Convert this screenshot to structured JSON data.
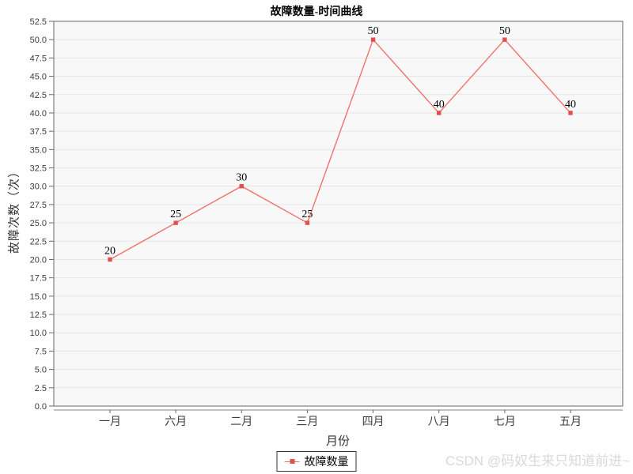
{
  "watermark": "CSDN @码奴生来只知道前进~",
  "chart_data": {
    "type": "line",
    "title": "故障数量-时间曲线",
    "categories": [
      "一月",
      "六月",
      "二月",
      "三月",
      "四月",
      "八月",
      "七月",
      "五月"
    ],
    "series": [
      {
        "name": "故障数量",
        "values": [
          20,
          25,
          30,
          25,
          50,
          40,
          50,
          40
        ]
      }
    ],
    "xlabel": "月份",
    "ylabel": "故障次数（次）",
    "ylim": [
      0,
      52.5
    ],
    "ytick_step": 2.5,
    "ytick_decimals": 1,
    "grid": "horizontal",
    "legend_position": "bottom-center",
    "data_labels_shown": true,
    "colors": {
      "line": "#f0716d",
      "marker": "#e2504d",
      "plot_bg": "#f8f8f8",
      "grid": "#e6e6e6",
      "frame": "#808080",
      "tick": "#666666",
      "tick_label": "#3c3c3c",
      "data_label": "#000000"
    }
  }
}
